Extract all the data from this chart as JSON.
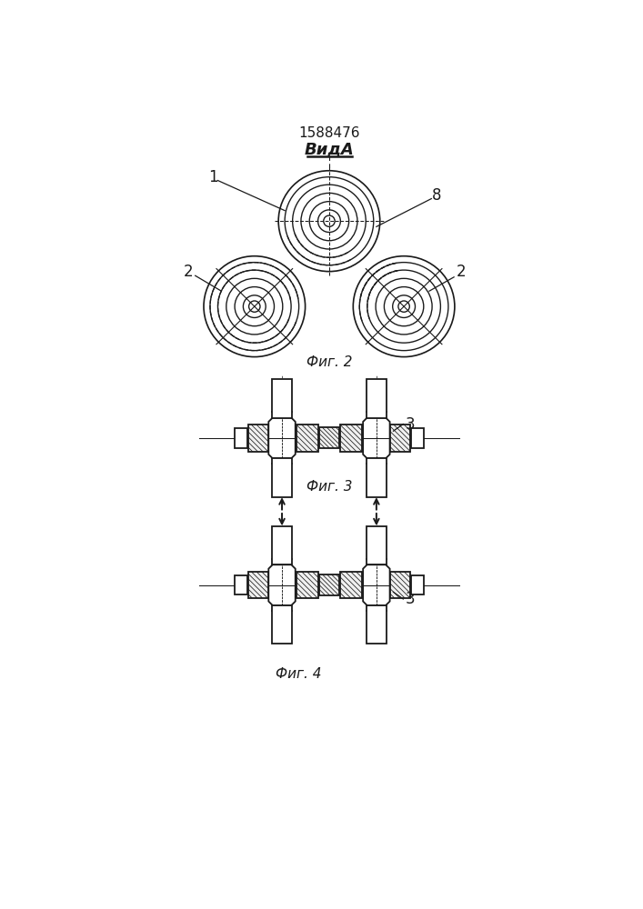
{
  "title": "1588476",
  "view_label": "ВидА",
  "fig2_label": "Фиг. 2",
  "fig3_label": "Фиг. 3",
  "fig4_label": "Фиг. 4",
  "label_1": "1",
  "label_2_left": "2",
  "label_2_right": "2",
  "label_8": "8",
  "label_3_fig3": "3",
  "label_3_fig4": "3",
  "bg_color": "#ffffff",
  "line_color": "#1a1a1a"
}
